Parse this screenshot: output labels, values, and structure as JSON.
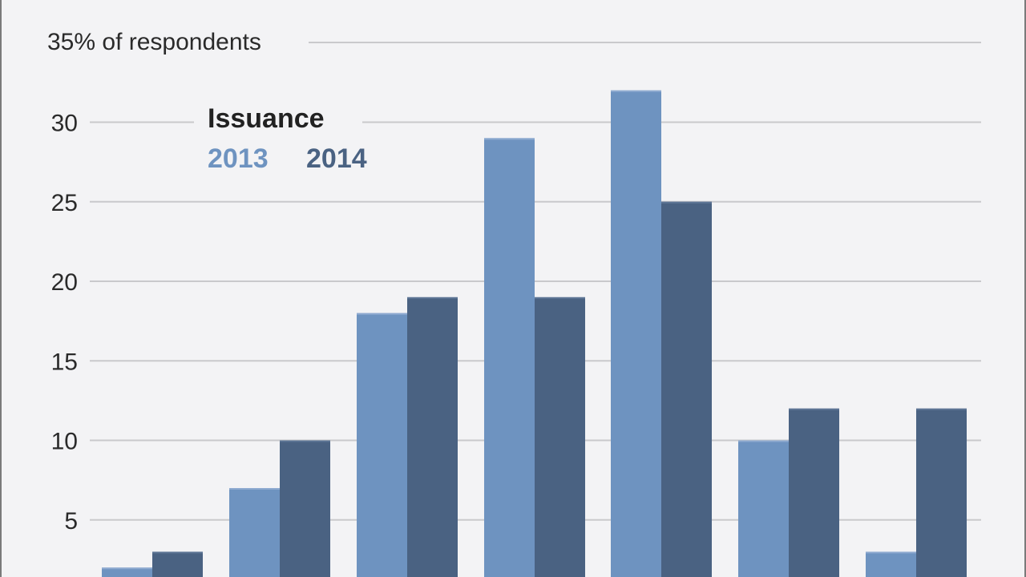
{
  "colors": {
    "2013": "#6e93c0",
    "2014": "#4a6282",
    "grid": "#c9c9cc",
    "background": "#f3f3f5"
  },
  "chart_data": {
    "type": "bar",
    "y_title": "35% of respondents",
    "ylim": [
      0,
      35
    ],
    "yticks": [
      5,
      10,
      15,
      20,
      25,
      30
    ],
    "grid": true,
    "legend": {
      "title": "Issuance",
      "placement": "top-left"
    },
    "categories": [
      "",
      "",
      "",
      "",
      "",
      "",
      ""
    ],
    "series": [
      {
        "name": "2013",
        "values": [
          2,
          7,
          18,
          29,
          32,
          10,
          3
        ]
      },
      {
        "name": "2014",
        "values": [
          3,
          10,
          19,
          19,
          25,
          12,
          12
        ]
      }
    ]
  }
}
